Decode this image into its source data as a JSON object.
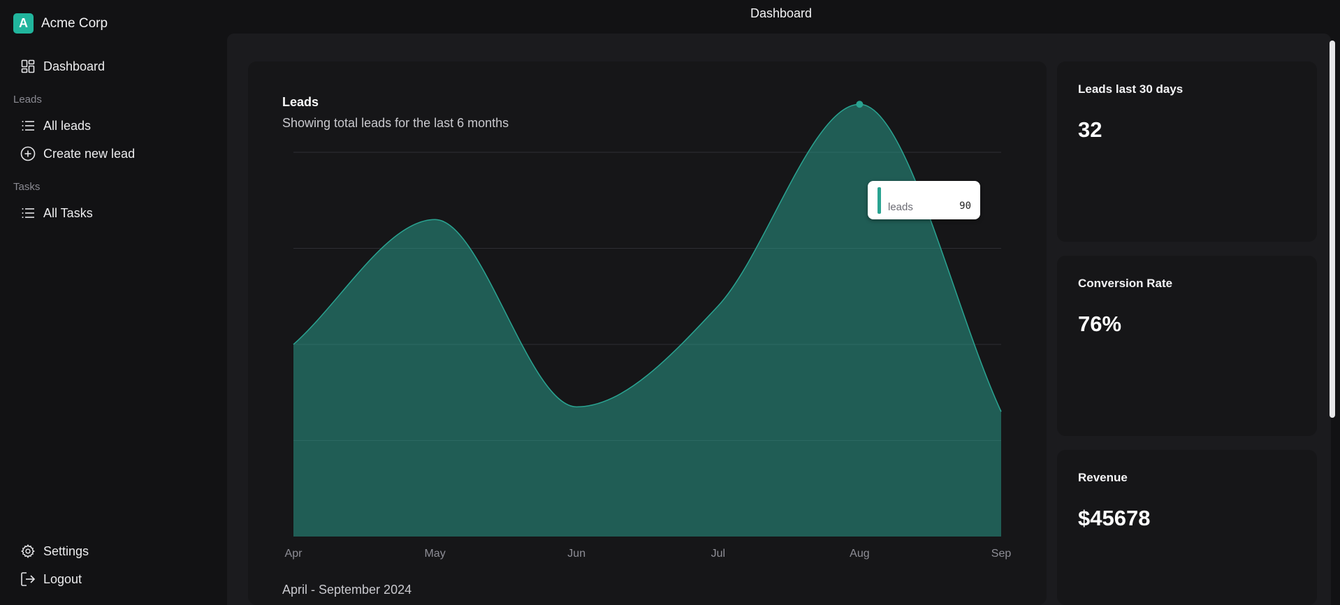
{
  "brand": {
    "logo_letter": "A",
    "name": "Acme Corp",
    "color": "#21b59d"
  },
  "header": {
    "title": "Dashboard"
  },
  "sidebar": {
    "dashboard": {
      "label": "Dashboard",
      "icon": "dashboard-icon"
    },
    "sections": [
      {
        "title": "Leads",
        "items": [
          {
            "label": "All leads",
            "icon": "list-icon"
          },
          {
            "label": "Create new lead",
            "icon": "plus-circle-icon"
          }
        ]
      },
      {
        "title": "Tasks",
        "items": [
          {
            "label": "All Tasks",
            "icon": "list-icon"
          }
        ]
      }
    ],
    "bottom": [
      {
        "label": "Settings",
        "icon": "gear-icon"
      },
      {
        "label": "Logout",
        "icon": "logout-icon"
      }
    ]
  },
  "chart_card": {
    "title": "Leads",
    "subtitle": "Showing total leads for the last 6 months",
    "footer": "April - September 2024",
    "tooltip": {
      "label": "leads",
      "value": "90"
    }
  },
  "chart_data": {
    "type": "area",
    "categories": [
      "Apr",
      "May",
      "Jun",
      "Jul",
      "Aug",
      "Sep"
    ],
    "series": [
      {
        "name": "leads",
        "values": [
          40,
          66,
          27,
          48,
          90,
          26
        ]
      }
    ],
    "ylim": [
      0,
      80
    ],
    "grid": true,
    "color": "#2aa391",
    "highlight_index": 4
  },
  "stats": [
    {
      "label": "Leads last 30 days",
      "value": "32"
    },
    {
      "label": "Conversion Rate",
      "value": "76%"
    },
    {
      "label": "Revenue",
      "value": "$45678"
    }
  ]
}
